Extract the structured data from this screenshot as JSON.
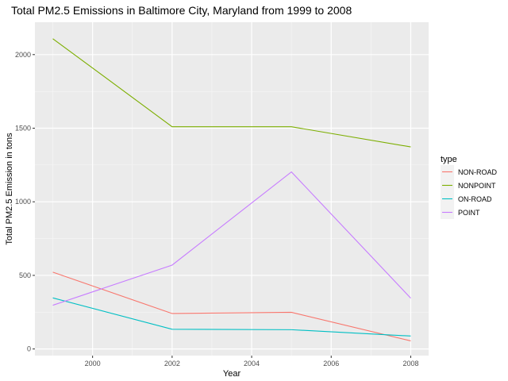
{
  "chart_data": {
    "type": "line",
    "title": "Total PM2.5 Emissions in Baltimore City, Maryland from 1999 to 2008",
    "xlabel": "Year",
    "ylabel": "Total PM2.5 Emission in tons",
    "x": [
      1999,
      2002,
      2005,
      2008
    ],
    "x_ticks": [
      2000,
      2002,
      2004,
      2006,
      2008
    ],
    "y_ticks": [
      0,
      500,
      1000,
      1500,
      2000
    ],
    "xlim": [
      1998.55,
      2008.45
    ],
    "ylim": [
      -45,
      2220
    ],
    "grid": true,
    "legend": {
      "title": "type",
      "position": "right"
    },
    "series": [
      {
        "name": "NON-ROAD",
        "color": "#F8766D",
        "values": [
          522,
          241,
          249,
          55
        ]
      },
      {
        "name": "NONPOINT",
        "color": "#7CAE00",
        "values": [
          2108,
          1510,
          1510,
          1373
        ]
      },
      {
        "name": "ON-ROAD",
        "color": "#00BFC4",
        "values": [
          347,
          134,
          131,
          88
        ]
      },
      {
        "name": "POINT",
        "color": "#C77CFF",
        "values": [
          297,
          570,
          1203,
          345
        ]
      }
    ]
  }
}
